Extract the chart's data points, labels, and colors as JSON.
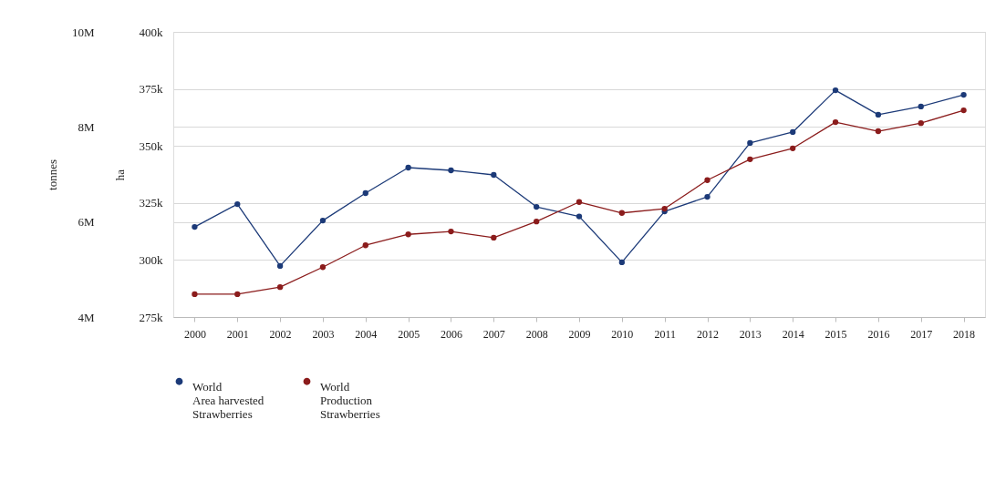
{
  "chart_data": {
    "type": "line",
    "categories": [
      "2000",
      "2001",
      "2002",
      "2003",
      "2004",
      "2005",
      "2006",
      "2007",
      "2008",
      "2009",
      "2010",
      "2011",
      "2012",
      "2013",
      "2014",
      "2015",
      "2016",
      "2017",
      "2018"
    ],
    "ylabel": "ha",
    "y2label": "tonnes",
    "ylim": [
      275000,
      400000
    ],
    "yticks": [
      {
        "value": 275000,
        "label": "275k"
      },
      {
        "value": 300000,
        "label": "300k"
      },
      {
        "value": 325000,
        "label": "325k"
      },
      {
        "value": 350000,
        "label": "350k"
      },
      {
        "value": 375000,
        "label": "375k"
      },
      {
        "value": 400000,
        "label": "400k"
      }
    ],
    "y2lim": [
      4000000,
      10000000
    ],
    "y2ticks": [
      {
        "value": 4000000,
        "label": "4M"
      },
      {
        "value": 6000000,
        "label": "6M"
      },
      {
        "value": 8000000,
        "label": "8M"
      },
      {
        "value": 10000000,
        "label": "10M"
      }
    ],
    "series": [
      {
        "name": "World\nArea harvested\nStrawberries",
        "color": "#1c3a78",
        "values": [
          314500,
          324500,
          297400,
          317300,
          329300,
          340500,
          339300,
          337300,
          323300,
          319100,
          299000,
          321300,
          327700,
          351300,
          356100,
          374400,
          363700,
          367300,
          372400
        ]
      },
      {
        "name": "World\nProduction\nStrawberries",
        "color": "#8b1c1c",
        "axis": "y2",
        "values": [
          4480000,
          4480000,
          4630000,
          5050000,
          5510000,
          5740000,
          5800000,
          5670000,
          6010000,
          6420000,
          6190000,
          6280000,
          6880000,
          7320000,
          7550000,
          8100000,
          7910000,
          8080000,
          8350000
        ]
      }
    ],
    "grid": true,
    "legend": "bottom",
    "marker": "circle",
    "line_style": "solid"
  }
}
